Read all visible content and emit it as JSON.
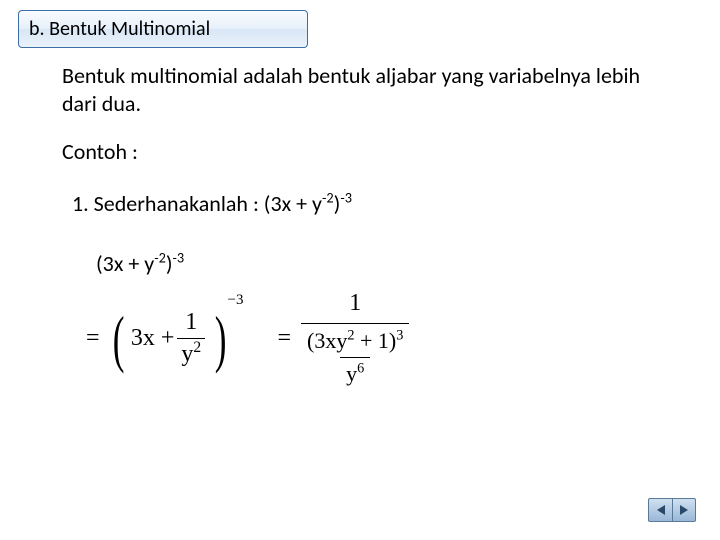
{
  "title": "b.  Bentuk Multinomial",
  "definition": "Bentuk multinomial adalah  bentuk aljabar yang variabelnya lebih dari dua.",
  "contoh_label": "Contoh  :",
  "problem_prefix": "1.  Sederhanakanlah :  (3x + y",
  "problem_sup1": "-2",
  "problem_mid": ")",
  "problem_sup2": "-3",
  "expr_prefix": "(3x + y",
  "expr_sup1": "-2",
  "expr_mid": ")",
  "expr_sup2": "-3",
  "math": {
    "eq": "=",
    "lparen": "(",
    "rparen": ")",
    "term1": "3x +",
    "frac1_num": "1",
    "frac1_den_base": "y",
    "frac1_den_exp": "2",
    "outer_exp": "−3",
    "rhs_num": "1",
    "rhs_den_inner_base": "(3xy",
    "rhs_den_inner_exp1": "2",
    "rhs_den_inner_tail": " + 1)",
    "rhs_den_inner_exp2": "3",
    "rhs_den_bottom_base": "y",
    "rhs_den_bottom_exp": "6"
  },
  "colors": {
    "title_border": "#3a6ea5",
    "title_bg_top": "#f8fbff",
    "title_bg_bottom": "#eaf2fb",
    "text": "#000000",
    "nav_bg": "#9ab8d8",
    "nav_border": "#5a7a9a"
  }
}
